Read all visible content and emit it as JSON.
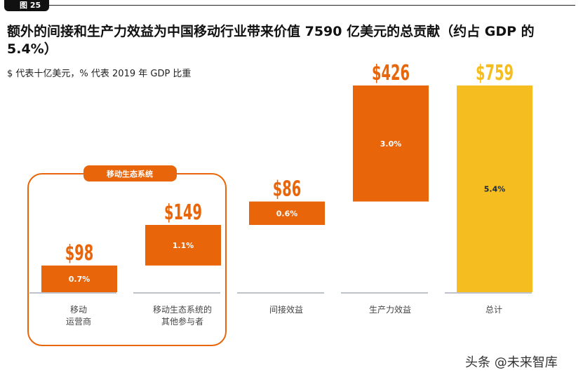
{
  "figure_label": "图 25",
  "chart_data": {
    "type": "waterfall",
    "title": "额外的间接和生产力效益为中国移动行业带来价值 7590 亿美元的总贡献（约占 GDP 的 5.4%）",
    "subtitle": "$ 代表十亿美元，% 代表 2019 年 GDP 比重",
    "categories": [
      "移动\n运营商",
      "移动生态系统的\n其他参与者",
      "间接效益",
      "生产力效益",
      "总计"
    ],
    "values": [
      98,
      149,
      86,
      426,
      759
    ],
    "value_labels": [
      "$98",
      "$149",
      "$86",
      "$426",
      "$759"
    ],
    "pct_labels": [
      "0.7%",
      "1.1%",
      "0.6%",
      "3.0%",
      "5.4%"
    ],
    "is_total": [
      false,
      false,
      false,
      false,
      true
    ],
    "group_label": "移动生态系统",
    "group_members": [
      0,
      1
    ],
    "colors": {
      "increment": "#E8650A",
      "total": "#F5BD1F",
      "baseline": "#A8AEB8",
      "pct_text_total": "#1a2a3a"
    }
  },
  "watermark": "头条 @未来智库"
}
